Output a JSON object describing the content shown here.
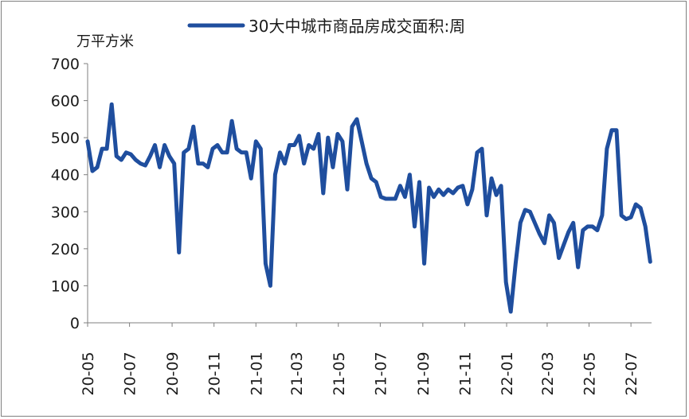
{
  "chart_data": {
    "type": "line",
    "ylabel": "万平方米",
    "ylim": [
      0,
      700
    ],
    "yticks": [
      0,
      100,
      200,
      300,
      400,
      500,
      600,
      700
    ],
    "xlim": [
      "2020-05-01",
      "2022-07-31"
    ],
    "x_tick_labels": [
      "20-05",
      "20-07",
      "20-09",
      "20-11",
      "21-01",
      "21-03",
      "21-05",
      "21-07",
      "21-09",
      "21-11",
      "22-01",
      "22-03",
      "22-05",
      "22-07"
    ],
    "x_tick_dates": [
      "2020-05-01",
      "2020-07-01",
      "2020-09-01",
      "2020-11-01",
      "2021-01-01",
      "2021-03-01",
      "2021-05-01",
      "2021-07-01",
      "2021-09-01",
      "2021-11-01",
      "2022-01-01",
      "2022-03-01",
      "2022-05-01",
      "2022-07-01"
    ],
    "grid": false,
    "legend_position": "top",
    "series": [
      {
        "name": "30大中城市商品房成交面积:周",
        "color": "#1f4e9e",
        "points": [
          [
            "2020-05-01",
            490
          ],
          [
            "2020-05-08",
            410
          ],
          [
            "2020-05-15",
            420
          ],
          [
            "2020-05-22",
            470
          ],
          [
            "2020-05-29",
            470
          ],
          [
            "2020-06-05",
            590
          ],
          [
            "2020-06-12",
            450
          ],
          [
            "2020-06-19",
            440
          ],
          [
            "2020-06-26",
            460
          ],
          [
            "2020-07-03",
            455
          ],
          [
            "2020-07-10",
            440
          ],
          [
            "2020-07-17",
            430
          ],
          [
            "2020-07-24",
            425
          ],
          [
            "2020-07-31",
            450
          ],
          [
            "2020-08-07",
            480
          ],
          [
            "2020-08-14",
            420
          ],
          [
            "2020-08-21",
            480
          ],
          [
            "2020-08-28",
            450
          ],
          [
            "2020-09-04",
            430
          ],
          [
            "2020-09-11",
            190
          ],
          [
            "2020-09-18",
            460
          ],
          [
            "2020-09-25",
            470
          ],
          [
            "2020-10-02",
            530
          ],
          [
            "2020-10-09",
            430
          ],
          [
            "2020-10-16",
            430
          ],
          [
            "2020-10-23",
            420
          ],
          [
            "2020-10-30",
            470
          ],
          [
            "2020-11-06",
            480
          ],
          [
            "2020-11-13",
            460
          ],
          [
            "2020-11-20",
            460
          ],
          [
            "2020-11-27",
            545
          ],
          [
            "2020-12-04",
            470
          ],
          [
            "2020-12-11",
            460
          ],
          [
            "2020-12-18",
            460
          ],
          [
            "2020-12-25",
            390
          ],
          [
            "2021-01-01",
            490
          ],
          [
            "2021-01-08",
            470
          ],
          [
            "2021-01-15",
            160
          ],
          [
            "2021-01-22",
            100
          ],
          [
            "2021-01-29",
            400
          ],
          [
            "2021-02-05",
            460
          ],
          [
            "2021-02-12",
            430
          ],
          [
            "2021-02-19",
            480
          ],
          [
            "2021-02-26",
            480
          ],
          [
            "2021-03-05",
            505
          ],
          [
            "2021-03-12",
            430
          ],
          [
            "2021-03-19",
            480
          ],
          [
            "2021-03-26",
            470
          ],
          [
            "2021-04-02",
            510
          ],
          [
            "2021-04-09",
            350
          ],
          [
            "2021-04-16",
            500
          ],
          [
            "2021-04-23",
            420
          ],
          [
            "2021-04-30",
            510
          ],
          [
            "2021-05-07",
            490
          ],
          [
            "2021-05-14",
            360
          ],
          [
            "2021-05-21",
            530
          ],
          [
            "2021-05-28",
            550
          ],
          [
            "2021-06-04",
            490
          ],
          [
            "2021-06-11",
            430
          ],
          [
            "2021-06-18",
            390
          ],
          [
            "2021-06-25",
            380
          ],
          [
            "2021-07-02",
            340
          ],
          [
            "2021-07-09",
            335
          ],
          [
            "2021-07-16",
            335
          ],
          [
            "2021-07-23",
            335
          ],
          [
            "2021-07-30",
            370
          ],
          [
            "2021-08-06",
            340
          ],
          [
            "2021-08-13",
            400
          ],
          [
            "2021-08-20",
            260
          ],
          [
            "2021-08-27",
            380
          ],
          [
            "2021-09-03",
            160
          ],
          [
            "2021-09-10",
            365
          ],
          [
            "2021-09-17",
            340
          ],
          [
            "2021-09-24",
            360
          ],
          [
            "2021-10-01",
            345
          ],
          [
            "2021-10-08",
            360
          ],
          [
            "2021-10-15",
            350
          ],
          [
            "2021-10-22",
            365
          ],
          [
            "2021-10-29",
            370
          ],
          [
            "2021-11-05",
            320
          ],
          [
            "2021-11-12",
            360
          ],
          [
            "2021-11-19",
            460
          ],
          [
            "2021-11-26",
            470
          ],
          [
            "2021-12-03",
            290
          ],
          [
            "2021-12-10",
            390
          ],
          [
            "2021-12-17",
            345
          ],
          [
            "2021-12-24",
            370
          ],
          [
            "2021-12-31",
            110
          ],
          [
            "2022-01-07",
            30
          ],
          [
            "2022-01-14",
            160
          ],
          [
            "2022-01-21",
            270
          ],
          [
            "2022-01-28",
            305
          ],
          [
            "2022-02-04",
            300
          ],
          [
            "2022-02-11",
            270
          ],
          [
            "2022-02-18",
            240
          ],
          [
            "2022-02-25",
            215
          ],
          [
            "2022-03-04",
            290
          ],
          [
            "2022-03-11",
            270
          ],
          [
            "2022-03-18",
            175
          ],
          [
            "2022-03-25",
            210
          ],
          [
            "2022-04-01",
            245
          ],
          [
            "2022-04-08",
            270
          ],
          [
            "2022-04-15",
            150
          ],
          [
            "2022-04-22",
            250
          ],
          [
            "2022-04-29",
            260
          ],
          [
            "2022-05-06",
            260
          ],
          [
            "2022-05-13",
            250
          ],
          [
            "2022-05-20",
            290
          ],
          [
            "2022-05-27",
            470
          ],
          [
            "2022-06-03",
            520
          ],
          [
            "2022-06-10",
            520
          ],
          [
            "2022-06-17",
            290
          ],
          [
            "2022-06-24",
            280
          ],
          [
            "2022-07-01",
            285
          ],
          [
            "2022-07-08",
            320
          ],
          [
            "2022-07-15",
            310
          ],
          [
            "2022-07-22",
            260
          ],
          [
            "2022-07-29",
            165
          ]
        ]
      }
    ]
  }
}
